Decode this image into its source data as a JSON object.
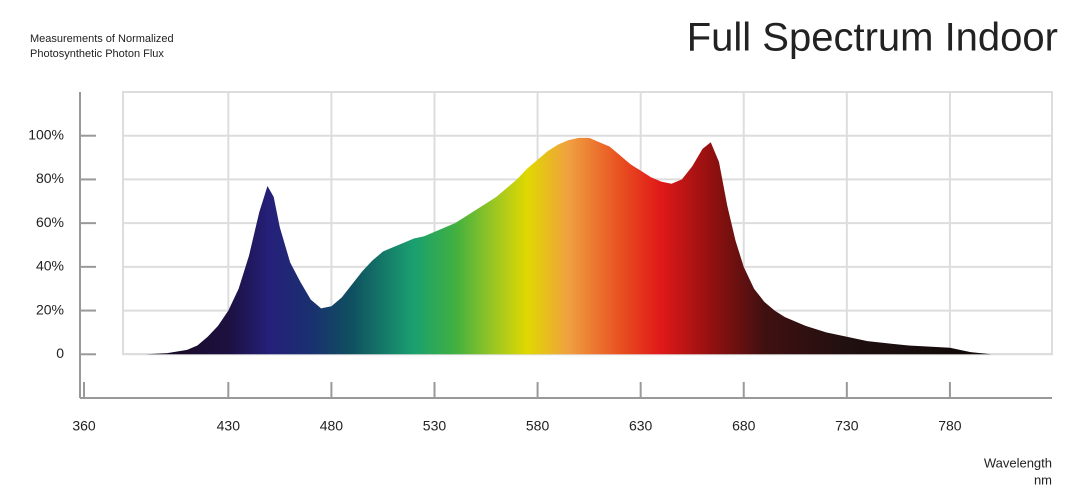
{
  "chart_data": {
    "type": "area",
    "title": "Full Spectrum Indoor",
    "subtitle_lines": [
      "Measurements of Normalized",
      "Photosynthetic Photon Flux"
    ],
    "xlabel_lines": [
      "Wavelength",
      "nm"
    ],
    "x": [
      390,
      400,
      410,
      415,
      420,
      425,
      430,
      435,
      440,
      445,
      449,
      452,
      455,
      460,
      465,
      470,
      475,
      480,
      485,
      490,
      495,
      500,
      505,
      510,
      515,
      520,
      525,
      530,
      535,
      540,
      545,
      550,
      555,
      560,
      565,
      570,
      575,
      580,
      585,
      590,
      595,
      600,
      605,
      610,
      615,
      620,
      625,
      630,
      635,
      640,
      645,
      650,
      655,
      660,
      664,
      668,
      672,
      676,
      680,
      685,
      690,
      695,
      700,
      710,
      720,
      730,
      740,
      750,
      760,
      770,
      780,
      790,
      800,
      810
    ],
    "values": [
      0,
      0.5,
      2,
      4,
      8,
      13,
      20,
      30,
      45,
      65,
      77,
      72,
      58,
      42,
      33,
      25,
      21,
      22,
      26,
      32,
      38,
      43,
      47,
      49,
      51,
      53,
      54,
      56,
      58,
      60,
      63,
      66,
      69,
      72,
      76,
      80,
      85,
      89,
      93,
      96,
      98,
      99,
      99,
      97,
      95,
      91,
      87,
      84,
      81,
      79,
      78,
      80,
      86,
      94,
      97,
      88,
      68,
      52,
      40,
      30,
      24,
      20,
      17,
      13,
      10,
      8,
      6,
      5,
      4,
      3.5,
      3,
      1,
      0,
      0
    ],
    "xlim": [
      360,
      830
    ],
    "ylim": [
      -20,
      120
    ],
    "xticks": [
      360,
      430,
      480,
      530,
      580,
      630,
      680,
      730,
      780
    ],
    "yticks": [
      0,
      {
        "value": 20,
        "label": "20%"
      },
      {
        "value": 40,
        "label": "40%"
      },
      {
        "value": 60,
        "label": "60%"
      },
      {
        "value": 80,
        "label": "80%"
      },
      {
        "value": 100,
        "label": "100%"
      }
    ],
    "grid": true
  }
}
